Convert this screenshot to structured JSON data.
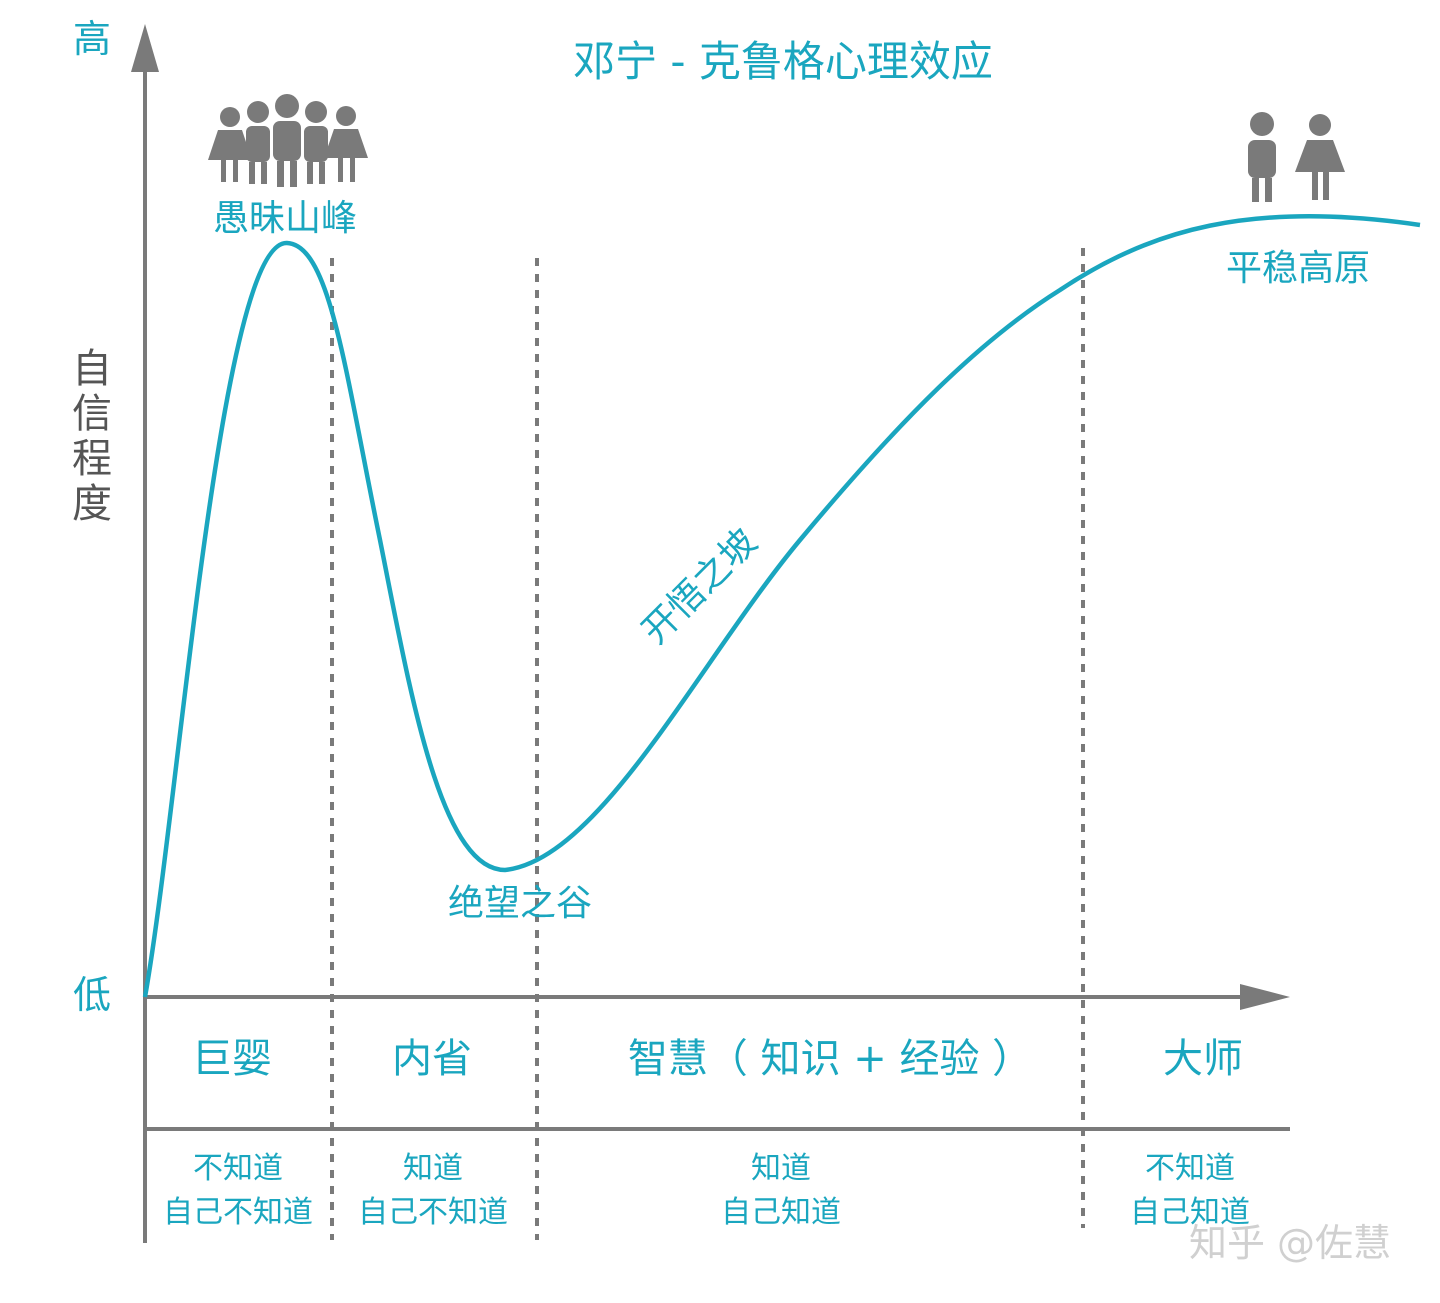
{
  "title": "邓宁 - 克鲁格心理效应",
  "colors": {
    "accent": "#1aa6bf",
    "axis": "#7a7a7a",
    "divider": "#7a7a7a",
    "figure": "#7a7a7a",
    "watermark": "#cfcfcf"
  },
  "y_axis": {
    "high": "高",
    "low": "低",
    "label": [
      "自",
      "信",
      "程",
      "度"
    ]
  },
  "curve_labels": {
    "peak": "愚昧山峰",
    "valley": "绝望之谷",
    "slope": "开悟之坡",
    "plateau": "平稳高原"
  },
  "stages": [
    {
      "name": "巨婴",
      "line1": "不知道",
      "line2": "自己不知道"
    },
    {
      "name": "内省",
      "line1": "知道",
      "line2": "自己不知道"
    },
    {
      "name": "智慧（ 知识 + 经验 ）",
      "line1": "知道",
      "line2": "自己知道"
    },
    {
      "name": "大师",
      "line1": "不知道",
      "line2": "自己知道"
    }
  ],
  "icons": {
    "crowd": "group-of-people-icon",
    "pair": "two-people-icon"
  },
  "watermark": "知乎 @佐慧"
}
